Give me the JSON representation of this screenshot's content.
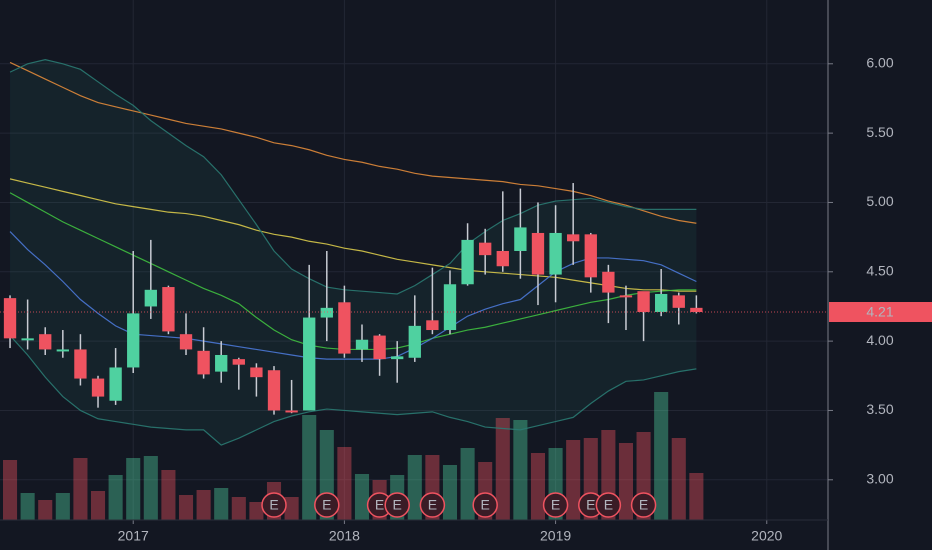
{
  "chart_data": {
    "type": "candlestick",
    "xlim": [
      -0.57,
      46.48
    ],
    "xticks": [
      {
        "value": 7,
        "label": "2017"
      },
      {
        "value": 19,
        "label": "2018"
      },
      {
        "value": 31,
        "label": "2019"
      },
      {
        "value": 43,
        "label": "2020"
      }
    ],
    "ylim": [
      2.71,
      6.46
    ],
    "yticks": [
      {
        "value": 3,
        "label": "3.00"
      },
      {
        "value": 3.5,
        "label": "3.50"
      },
      {
        "value": 4,
        "label": "4.00"
      },
      {
        "value": 4.5,
        "label": "4.50"
      },
      {
        "value": 5,
        "label": "5.00"
      },
      {
        "value": 5.5,
        "label": "5.50"
      },
      {
        "value": 6,
        "label": "6.00"
      }
    ],
    "grid": true,
    "up_color": "#4fd1a0",
    "down_color": "#ef5360",
    "candles": {
      "open": [
        4.31,
        4.01,
        4.05,
        3.94,
        3.94,
        3.73,
        3.57,
        3.81,
        4.25,
        4.39,
        4.05,
        3.93,
        3.78,
        3.87,
        3.81,
        3.79,
        3.5,
        3.5,
        4.17,
        4.28,
        3.94,
        4.04,
        3.87,
        3.88,
        4.15,
        4.08,
        4.41,
        4.71,
        4.65,
        4.65,
        4.78,
        4.48,
        4.77,
        4.77,
        4.5,
        4.33,
        4.36,
        4.21,
        4.33,
        4.24
      ],
      "high": [
        4.33,
        4.3,
        4.1,
        4.08,
        4.05,
        3.75,
        3.95,
        4.65,
        4.73,
        4.4,
        4.2,
        4.1,
        4.0,
        3.88,
        3.84,
        3.82,
        3.72,
        4.55,
        4.65,
        4.4,
        4.12,
        4.05,
        4.0,
        4.33,
        4.53,
        4.51,
        4.85,
        4.81,
        5.08,
        5.1,
        5.0,
        4.98,
        5.14,
        4.78,
        4.55,
        4.4,
        4.35,
        4.52,
        4.35,
        4.33
      ],
      "low": [
        3.95,
        3.94,
        3.9,
        3.88,
        3.68,
        3.52,
        3.54,
        3.77,
        4.16,
        4.05,
        3.9,
        3.73,
        3.7,
        3.65,
        3.6,
        3.47,
        3.48,
        3.5,
        4.0,
        3.88,
        3.85,
        3.75,
        3.7,
        3.85,
        4.05,
        4.05,
        4.4,
        4.48,
        4.5,
        4.45,
        4.26,
        4.28,
        4.55,
        4.35,
        4.13,
        4.08,
        4.0,
        4.18,
        4.12,
        4.2
      ],
      "close": [
        4.02,
        4.02,
        3.94,
        3.94,
        3.73,
        3.6,
        3.81,
        4.2,
        4.37,
        4.07,
        3.94,
        3.76,
        3.9,
        3.83,
        3.74,
        3.5,
        3.49,
        4.17,
        4.24,
        3.91,
        4.01,
        3.87,
        3.89,
        4.11,
        4.08,
        4.41,
        4.73,
        4.62,
        4.54,
        4.82,
        4.48,
        4.78,
        4.72,
        4.46,
        4.35,
        4.32,
        4.21,
        4.34,
        4.24,
        4.21
      ]
    },
    "volume": [
      60,
      27,
      20,
      27,
      62,
      29,
      45,
      62,
      64,
      50,
      25,
      30,
      32,
      23,
      18,
      38,
      23,
      105,
      90,
      73,
      46,
      40,
      45,
      65,
      65,
      55,
      72,
      58,
      102,
      100,
      67,
      72,
      80,
      82,
      90,
      77,
      88,
      128,
      82,
      47
    ],
    "vlim": [
      0,
      140
    ],
    "overlays": [
      {
        "color": "#e0893a",
        "values": [
          6.01,
          5.95,
          5.89,
          5.83,
          5.77,
          5.72,
          5.69,
          5.66,
          5.63,
          5.6,
          5.57,
          5.55,
          5.53,
          5.5,
          5.47,
          5.43,
          5.41,
          5.38,
          5.34,
          5.31,
          5.29,
          5.26,
          5.24,
          5.21,
          5.19,
          5.18,
          5.17,
          5.16,
          5.15,
          5.13,
          5.12,
          5.1,
          5.08,
          5.05,
          5.01,
          4.98,
          4.94,
          4.9,
          4.87,
          4.85
        ]
      },
      {
        "color": "#d8c94a",
        "values": [
          5.17,
          5.14,
          5.11,
          5.08,
          5.05,
          5.02,
          4.99,
          4.97,
          4.95,
          4.93,
          4.92,
          4.9,
          4.87,
          4.84,
          4.8,
          4.77,
          4.75,
          4.72,
          4.7,
          4.67,
          4.65,
          4.62,
          4.59,
          4.57,
          4.55,
          4.53,
          4.51,
          4.5,
          4.49,
          4.48,
          4.47,
          4.46,
          4.44,
          4.42,
          4.4,
          4.38,
          4.37,
          4.37,
          4.36,
          4.36
        ]
      },
      {
        "color": "#3fbf3f",
        "values": [
          5.07,
          5.0,
          4.93,
          4.86,
          4.8,
          4.74,
          4.68,
          4.62,
          4.56,
          4.5,
          4.44,
          4.38,
          4.33,
          4.27,
          4.17,
          4.08,
          4.01,
          3.97,
          3.95,
          3.94,
          3.94,
          3.94,
          3.95,
          3.98,
          4.02,
          4.05,
          4.08,
          4.1,
          4.13,
          4.16,
          4.19,
          4.22,
          4.25,
          4.28,
          4.3,
          4.33,
          4.35,
          4.36,
          4.37,
          4.37
        ]
      },
      {
        "color": "#4a78d6",
        "values": [
          4.79,
          4.66,
          4.55,
          4.43,
          4.3,
          4.2,
          4.11,
          4.05,
          4.04,
          4.03,
          4.02,
          4.0,
          3.98,
          3.96,
          3.94,
          3.92,
          3.9,
          3.88,
          3.87,
          3.87,
          3.87,
          3.87,
          3.89,
          3.95,
          4.02,
          4.1,
          4.18,
          4.23,
          4.27,
          4.3,
          4.4,
          4.5,
          4.56,
          4.6,
          4.6,
          4.59,
          4.58,
          4.55,
          4.49,
          4.43
        ]
      },
      {
        "color": "#2a7a72",
        "values": [
          5.94,
          6.0,
          6.03,
          6.0,
          5.96,
          5.87,
          5.78,
          5.7,
          5.59,
          5.5,
          5.41,
          5.33,
          5.2,
          5.02,
          4.84,
          4.65,
          4.52,
          4.45,
          4.39,
          4.37,
          4.36,
          4.35,
          4.34,
          4.4,
          4.48,
          4.56,
          4.7,
          4.79,
          4.87,
          4.92,
          4.98,
          5.01,
          5.02,
          5.03,
          5.0,
          4.97,
          4.95,
          4.95,
          4.95,
          4.95
        ]
      },
      {
        "color": "#2a7a72",
        "values": [
          4.04,
          3.9,
          3.74,
          3.6,
          3.5,
          3.44,
          3.42,
          3.4,
          3.38,
          3.37,
          3.36,
          3.36,
          3.25,
          3.3,
          3.36,
          3.42,
          3.46,
          3.49,
          3.51,
          3.5,
          3.49,
          3.48,
          3.47,
          3.48,
          3.49,
          3.45,
          3.42,
          3.38,
          3.37,
          3.36,
          3.39,
          3.42,
          3.45,
          3.55,
          3.64,
          3.71,
          3.72,
          3.75,
          3.78,
          3.8
        ]
      }
    ],
    "earnings": [
      null,
      null,
      null,
      null,
      null,
      null,
      null,
      null,
      null,
      null,
      null,
      null,
      null,
      null,
      null,
      "E",
      null,
      null,
      "E",
      null,
      null,
      "E",
      "E",
      null,
      "E",
      null,
      null,
      "E",
      null,
      null,
      null,
      "E",
      null,
      "E",
      "E",
      null,
      "E",
      null,
      null,
      null
    ],
    "last_price": 4.21
  }
}
